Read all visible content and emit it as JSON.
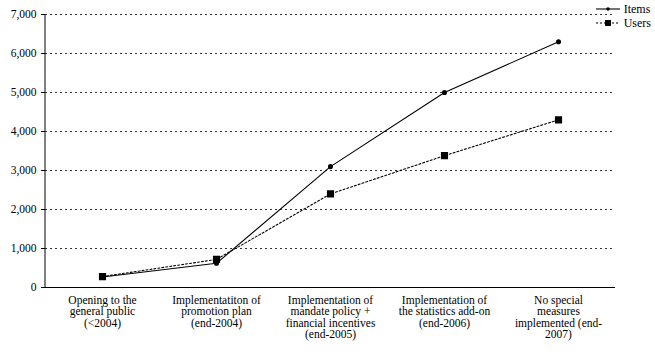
{
  "chart_data": {
    "type": "line",
    "categories": [
      "Opening to the\ngeneral public\n(<2004)",
      "Implementatiton of\npromotion plan\n(end-2004)",
      "Implementation of\nmandate policy +\nfinancial incentives\n(end-2005)",
      "Implementation of\nthe statistics add-on\n(end-2006)",
      "No special\nmeasures\nimplemented (end-\n2007)"
    ],
    "series": [
      {
        "name": "Items",
        "color": "#000000",
        "marker": "circle",
        "line_style": "solid",
        "values": [
          270,
          620,
          3100,
          5000,
          6300
        ]
      },
      {
        "name": "Users",
        "color": "#000000",
        "marker": "square",
        "line_style": "dotted",
        "values": [
          280,
          720,
          2400,
          3380,
          4300
        ]
      }
    ],
    "ylim": [
      0,
      7000
    ],
    "yticks": [
      0,
      {
        "value": 1000,
        "label": "1,000"
      },
      {
        "value": 2000,
        "label": "2,000"
      },
      {
        "value": 3000,
        "label": "3,000"
      },
      {
        "value": 4000,
        "label": "4,000"
      },
      {
        "value": 5000,
        "label": "5,000"
      },
      {
        "value": 6000,
        "label": "6,000"
      },
      {
        "value": 7000,
        "label": "7,000"
      }
    ],
    "grid": true,
    "legend": "top-right"
  }
}
